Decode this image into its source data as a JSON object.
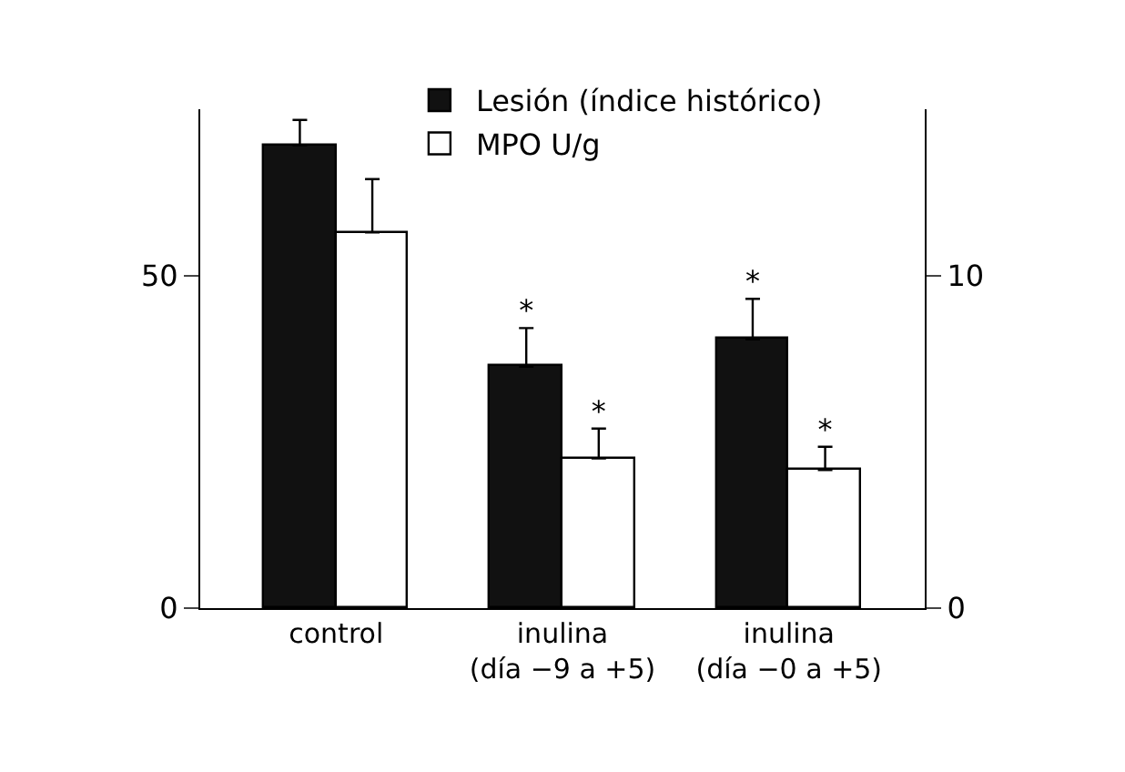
{
  "chart_data": {
    "type": "bar",
    "categories": [
      "control",
      "inulina\n(día −9 a +5)",
      "inulina\n(día −0 a +5)"
    ],
    "series": [
      {
        "name": "Lesión (índice histórico)",
        "color": "#111111",
        "values": [
          69.6,
          36.3,
          40.4
        ],
        "errors": [
          [
            69.6,
            73.4
          ],
          [
            36.3,
            42.1
          ],
          [
            40.4,
            46.5
          ]
        ],
        "value_labels": [
          null,
          "*",
          "*"
        ]
      },
      {
        "name": "MPO U/g",
        "color": "#ffffff",
        "axis": "y2",
        "values": [
          11.3,
          4.5,
          4.15
        ],
        "errors": [
          [
            11.3,
            12.9
          ],
          [
            4.5,
            5.4
          ],
          [
            4.15,
            4.85
          ]
        ],
        "value_labels": [
          null,
          "*",
          "*"
        ]
      }
    ],
    "ylim": [
      0,
      75
    ],
    "yticks": [
      0,
      50
    ],
    "y2lim": [
      0,
      15
    ],
    "y2ticks": [
      0,
      10
    ],
    "legend": "top"
  }
}
